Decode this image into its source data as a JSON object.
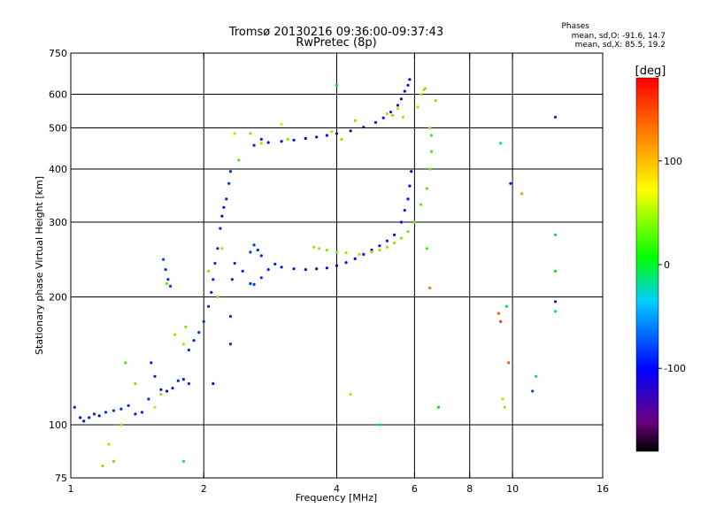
{
  "chart_data": {
    "type": "scatter",
    "title": "Tromsø 20130216 09:36:00-09:37:43",
    "subtitle": "RwPretec (8p)",
    "xlabel": "Frequency [MHz]",
    "ylabel": "Stationary phase Virtual Height [km]",
    "x_scale": "log",
    "y_scale": "log",
    "xlim": [
      1,
      16
    ],
    "ylim": [
      75,
      750
    ],
    "x_ticks": [
      1,
      2,
      4,
      6,
      8,
      10,
      16
    ],
    "x_tick_labels": [
      "1",
      "2",
      "4",
      "6",
      "8",
      "10",
      "16"
    ],
    "y_ticks": [
      75,
      100,
      200,
      300,
      400,
      500,
      600,
      750
    ],
    "y_tick_labels": [
      "75",
      "100",
      "200",
      "300",
      "400",
      "500",
      "600",
      "750"
    ],
    "grid_x": [
      2,
      4,
      6,
      8,
      10
    ],
    "grid_y": [
      100,
      200,
      300,
      400,
      500,
      600
    ],
    "stats": {
      "header": "Phases",
      "line1": "mean, sd,O: -91.6, 14.7",
      "line2": "mean, sd,X: 85.5, 19.2"
    },
    "colorbar": {
      "label": "[deg]",
      "min": -180,
      "max": 180,
      "ticks": [
        100,
        0,
        -100
      ],
      "tick_labels": [
        "100",
        "0",
        "-100"
      ]
    },
    "series": [
      {
        "polarization": "O",
        "mean_phase_deg": -91.6,
        "points": [
          [
            1.02,
            110,
            -95
          ],
          [
            1.05,
            104,
            -100
          ],
          [
            1.07,
            102,
            -98
          ],
          [
            1.1,
            104,
            -96
          ],
          [
            1.13,
            106,
            -92
          ],
          [
            1.16,
            105,
            -95
          ],
          [
            1.2,
            107,
            -90
          ],
          [
            1.25,
            108,
            -88
          ],
          [
            1.3,
            109,
            -92
          ],
          [
            1.35,
            111,
            -94
          ],
          [
            1.4,
            106,
            -96
          ],
          [
            1.45,
            107,
            -90
          ],
          [
            1.5,
            115,
            -88
          ],
          [
            1.52,
            140,
            -92
          ],
          [
            1.55,
            130,
            -95
          ],
          [
            1.6,
            121,
            -100
          ],
          [
            1.65,
            120,
            -98
          ],
          [
            1.7,
            122,
            -94
          ],
          [
            1.75,
            127,
            -92
          ],
          [
            1.8,
            128,
            -95
          ],
          [
            1.85,
            125,
            -90
          ],
          [
            1.62,
            245,
            -85
          ],
          [
            1.64,
            232,
            -88
          ],
          [
            1.66,
            220,
            -90
          ],
          [
            1.68,
            212,
            -86
          ],
          [
            1.85,
            150,
            -92
          ],
          [
            1.9,
            158,
            -95
          ],
          [
            1.95,
            165,
            -90
          ],
          [
            2.0,
            175,
            -88
          ],
          [
            2.05,
            190,
            -92
          ],
          [
            2.08,
            205,
            -94
          ],
          [
            2.1,
            220,
            -90
          ],
          [
            2.12,
            240,
            -88
          ],
          [
            2.15,
            260,
            -92
          ],
          [
            2.18,
            290,
            -95
          ],
          [
            2.2,
            310,
            -100
          ],
          [
            2.22,
            325,
            -98
          ],
          [
            2.25,
            340,
            -95
          ],
          [
            2.28,
            370,
            -92
          ],
          [
            2.3,
            395,
            -90
          ],
          [
            2.3,
            155,
            -92
          ],
          [
            2.3,
            180,
            -90
          ],
          [
            2.32,
            220,
            -95
          ],
          [
            2.35,
            240,
            -90
          ],
          [
            2.45,
            230,
            -92
          ],
          [
            2.55,
            215,
            -90
          ],
          [
            2.6,
            214,
            -88
          ],
          [
            2.7,
            222,
            -90
          ],
          [
            2.8,
            232,
            -92
          ],
          [
            2.9,
            239,
            -94
          ],
          [
            2.55,
            255,
            -85
          ],
          [
            2.6,
            265,
            -88
          ],
          [
            2.65,
            258,
            -90
          ],
          [
            2.7,
            250,
            -92
          ],
          [
            3.0,
            235,
            -95
          ],
          [
            3.2,
            233,
            -98
          ],
          [
            3.4,
            232,
            -100
          ],
          [
            3.6,
            233,
            -102
          ],
          [
            3.8,
            234,
            -105
          ],
          [
            4.0,
            237,
            -108
          ],
          [
            4.2,
            241,
            -110
          ],
          [
            4.4,
            246,
            -112
          ],
          [
            4.6,
            252,
            -115
          ],
          [
            4.8,
            258,
            -118
          ],
          [
            5.0,
            264,
            -120
          ],
          [
            5.2,
            271,
            -122
          ],
          [
            5.4,
            280,
            -118
          ],
          [
            5.6,
            300,
            -115
          ],
          [
            5.7,
            320,
            -112
          ],
          [
            5.8,
            340,
            -110
          ],
          [
            5.85,
            365,
            -108
          ],
          [
            5.9,
            395,
            -105
          ],
          [
            2.6,
            455,
            -92
          ],
          [
            2.7,
            470,
            -95
          ],
          [
            2.8,
            462,
            -98
          ],
          [
            3.0,
            465,
            -100
          ],
          [
            3.2,
            468,
            -102
          ],
          [
            3.4,
            472,
            -105
          ],
          [
            3.6,
            476,
            -108
          ],
          [
            3.8,
            480,
            -110
          ],
          [
            4.0,
            485,
            -112
          ],
          [
            4.3,
            492,
            -114
          ],
          [
            4.6,
            502,
            -116
          ],
          [
            4.9,
            515,
            -118
          ],
          [
            5.1,
            528,
            -120
          ],
          [
            5.3,
            545,
            -118
          ],
          [
            5.5,
            565,
            -115
          ],
          [
            5.6,
            585,
            -112
          ],
          [
            5.7,
            610,
            -110
          ],
          [
            5.8,
            630,
            -108
          ],
          [
            5.85,
            650,
            -105
          ]
        ]
      },
      {
        "polarization": "X",
        "mean_phase_deg": 85.5,
        "points": [
          [
            1.18,
            80,
            80
          ],
          [
            1.22,
            90,
            85
          ],
          [
            1.25,
            82,
            70
          ],
          [
            1.3,
            100,
            90
          ],
          [
            1.33,
            140,
            60
          ],
          [
            1.4,
            125,
            75
          ],
          [
            1.55,
            110,
            95
          ],
          [
            1.6,
            118,
            82
          ],
          [
            1.65,
            215,
            70
          ],
          [
            1.72,
            163,
            88
          ],
          [
            1.8,
            155,
            92
          ],
          [
            1.82,
            170,
            76
          ],
          [
            2.05,
            230,
            84
          ],
          [
            2.15,
            200,
            78
          ],
          [
            2.2,
            260,
            90
          ],
          [
            2.35,
            485,
            98
          ],
          [
            2.4,
            420,
            65
          ],
          [
            2.55,
            485,
            82
          ],
          [
            2.7,
            460,
            90
          ],
          [
            3.1,
            470,
            75
          ],
          [
            3.55,
            262,
            85
          ],
          [
            3.65,
            260,
            88
          ],
          [
            3.8,
            258,
            82
          ],
          [
            4.0,
            255,
            80
          ],
          [
            4.2,
            254,
            85
          ],
          [
            4.5,
            252,
            88
          ],
          [
            4.8,
            255,
            90
          ],
          [
            5.0,
            258,
            86
          ],
          [
            5.2,
            262,
            84
          ],
          [
            5.4,
            268,
            80
          ],
          [
            5.6,
            275,
            78
          ],
          [
            5.8,
            285,
            75
          ],
          [
            6.0,
            300,
            72
          ],
          [
            6.2,
            330,
            70
          ],
          [
            6.4,
            360,
            68
          ],
          [
            6.5,
            400,
            66
          ],
          [
            6.55,
            440,
            64
          ],
          [
            6.55,
            480,
            62
          ],
          [
            6.4,
            260,
            60
          ],
          [
            5.2,
            540,
            85
          ],
          [
            5.35,
            535,
            80
          ],
          [
            5.5,
            555,
            95
          ],
          [
            5.65,
            530,
            90
          ],
          [
            6.1,
            560,
            95
          ],
          [
            6.2,
            600,
            92
          ],
          [
            6.3,
            615,
            88
          ],
          [
            6.35,
            620,
            85
          ],
          [
            4.3,
            118,
            100
          ],
          [
            4.4,
            520,
            80
          ],
          [
            4.1,
            470,
            85
          ],
          [
            3.0,
            510,
            110
          ],
          [
            3.9,
            490,
            90
          ],
          [
            6.5,
            500,
            95
          ],
          [
            6.7,
            580,
            120
          ],
          [
            6.5,
            210,
            140
          ],
          [
            10.5,
            350,
            130
          ],
          [
            9.3,
            183,
            150
          ],
          [
            9.4,
            175,
            160
          ],
          [
            9.5,
            115,
            95
          ],
          [
            9.6,
            110,
            90
          ],
          [
            4.0,
            630,
            30
          ],
          [
            9.4,
            460,
            10
          ],
          [
            9.7,
            190,
            20
          ],
          [
            9.8,
            140,
            150
          ],
          [
            11.3,
            130,
            5
          ],
          [
            12.5,
            280,
            15
          ],
          [
            12.5,
            230,
            25
          ],
          [
            12.5,
            185,
            10
          ],
          [
            5.0,
            100,
            20
          ],
          [
            6.8,
            110,
            30
          ],
          [
            1.8,
            82,
            10
          ],
          [
            11.1,
            120,
            -80
          ],
          [
            12.5,
            530,
            -90
          ],
          [
            12.5,
            195,
            -120
          ],
          [
            9.9,
            370,
            -100
          ],
          [
            2.1,
            125,
            -110
          ]
        ]
      }
    ]
  }
}
